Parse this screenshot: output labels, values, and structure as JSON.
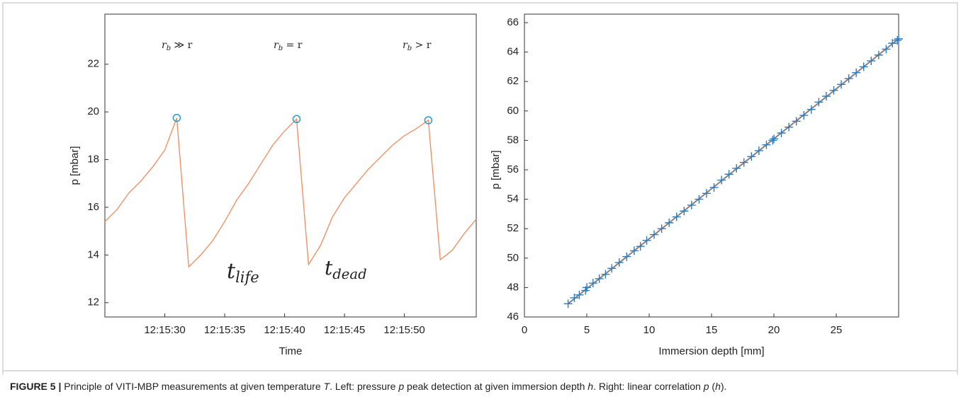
{
  "chart_data": [
    {
      "type": "line",
      "xlabel": "Time",
      "ylabel": "p [mbar]",
      "x": [
        "12:15:25",
        "12:15:26",
        "12:15:27",
        "12:15:28",
        "12:15:29",
        "12:15:30",
        "12:15:31",
        "12:15:32",
        "12:15:33",
        "12:15:34",
        "12:15:35",
        "12:15:36",
        "12:15:37",
        "12:15:38",
        "12:15:39",
        "12:15:40",
        "12:15:41",
        "12:15:42",
        "12:15:43",
        "12:15:44",
        "12:15:45",
        "12:15:46",
        "12:15:47",
        "12:15:48",
        "12:15:49",
        "12:15:50",
        "12:15:51",
        "12:15:52",
        "12:15:53",
        "12:15:54",
        "12:15:55",
        "12:15:56"
      ],
      "values": [
        15.4,
        15.9,
        16.6,
        17.1,
        17.7,
        18.4,
        19.75,
        13.5,
        14.0,
        14.6,
        15.4,
        16.3,
        17.0,
        17.8,
        18.6,
        19.2,
        19.7,
        13.6,
        14.4,
        15.6,
        16.4,
        17.0,
        17.6,
        18.1,
        18.6,
        19.0,
        19.3,
        19.65,
        13.8,
        14.2,
        14.9,
        15.5
      ],
      "color": "#f08a5d",
      "peaks": {
        "x": [
          "12:15:31",
          "12:15:41",
          "12:15:52"
        ],
        "values": [
          19.75,
          19.7,
          19.65
        ],
        "color": "#1f9bd7"
      },
      "xlim": [
        "12:15:25",
        "12:15:56"
      ],
      "xticks": [
        "12:15:30",
        "12:15:35",
        "12:15:40",
        "12:15:45",
        "12:15:50"
      ],
      "ylim": [
        11.4,
        24.1
      ],
      "yticks": [
        12,
        14,
        16,
        18,
        20,
        22
      ],
      "annotations": [
        {
          "text": "t",
          "sub": "life"
        },
        {
          "text": "t",
          "sub": "dead"
        }
      ],
      "insets": [
        {
          "text": "r",
          "sub": "b",
          "rest": " ≫ r"
        },
        {
          "text": "r",
          "sub": "b",
          "rest": " = r"
        },
        {
          "text": "r",
          "sub": "b",
          "rest": " > r"
        }
      ]
    },
    {
      "type": "scatter",
      "xlabel": "Immersion depth [mm]",
      "ylabel": "p [mbar]",
      "x": [
        3.5,
        4.0,
        4.4,
        4.9,
        5.0,
        5.5,
        6.0,
        6.5,
        7.0,
        7.6,
        8.2,
        8.8,
        9.3,
        9.8,
        10.4,
        11.0,
        11.6,
        12.2,
        12.8,
        13.4,
        14.0,
        14.6,
        15.2,
        15.8,
        16.4,
        17.0,
        17.6,
        18.2,
        18.8,
        19.4,
        19.9,
        20.0,
        20.6,
        21.2,
        21.8,
        22.4,
        23.0,
        23.6,
        24.2,
        24.8,
        25.4,
        26.0,
        26.6,
        27.2,
        27.8,
        28.4,
        29.0,
        29.5,
        29.9,
        30.0
      ],
      "values": [
        46.9,
        47.3,
        47.5,
        47.8,
        48.0,
        48.3,
        48.6,
        48.9,
        49.3,
        49.7,
        50.1,
        50.5,
        50.8,
        51.2,
        51.6,
        52.0,
        52.4,
        52.8,
        53.2,
        53.6,
        54.0,
        54.4,
        54.8,
        55.3,
        55.7,
        56.1,
        56.5,
        56.9,
        57.3,
        57.7,
        58.0,
        58.1,
        58.5,
        58.9,
        59.3,
        59.7,
        60.1,
        60.6,
        61.0,
        61.4,
        61.8,
        62.2,
        62.6,
        63.0,
        63.4,
        63.8,
        64.2,
        64.6,
        64.8,
        64.9
      ],
      "color": "#2b7bbd",
      "fit": {
        "x": [
          3.5,
          30
        ],
        "values": [
          46.9,
          64.9
        ],
        "color": "#8a7f7f"
      },
      "xlim": [
        0,
        30
      ],
      "xticks": [
        0,
        5,
        10,
        15,
        20,
        25
      ],
      "ylim": [
        46,
        66
      ],
      "yticks": [
        46,
        48,
        50,
        52,
        54,
        56,
        58,
        60,
        62,
        64,
        66
      ]
    }
  ],
  "caption": {
    "label": "FIGURE 5 |",
    "parts": [
      {
        "text": " Principle of VITI-MBP measurements at given temperature "
      },
      {
        "text": "T",
        "italic": true
      },
      {
        "text": ". Left: pressure "
      },
      {
        "text": "p",
        "italic": true
      },
      {
        "text": " peak detection at given immersion depth "
      },
      {
        "text": "h",
        "italic": true
      },
      {
        "text": ". Right: linear correlation "
      },
      {
        "text": "p",
        "italic": true
      },
      {
        "text": " ("
      },
      {
        "text": "h",
        "italic": true
      },
      {
        "text": ")."
      }
    ]
  }
}
